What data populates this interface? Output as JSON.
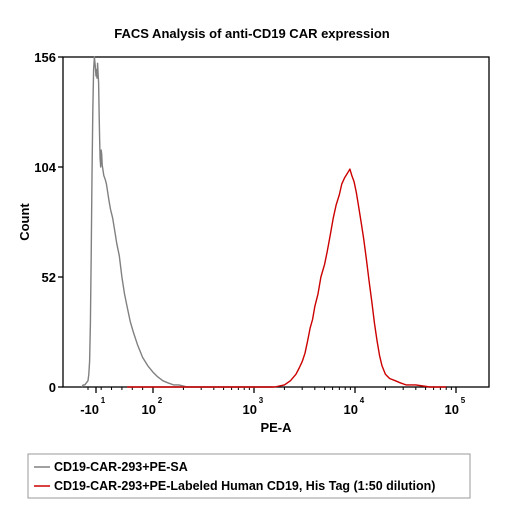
{
  "chart_data": {
    "type": "line",
    "title": "FACS Analysis of anti-CD19 CAR expression",
    "xlabel": "PE-A",
    "ylabel": "Count",
    "xscale": "log",
    "xlim": [
      -30,
      300000
    ],
    "ylim": [
      0,
      156
    ],
    "yticks": [
      0,
      52,
      104,
      156
    ],
    "xticks": [
      {
        "base": "-10",
        "exp": "1",
        "value": -10
      },
      {
        "base": "10",
        "exp": "2",
        "value": 100
      },
      {
        "base": "10",
        "exp": "3",
        "value": 1000
      },
      {
        "base": "10",
        "exp": "4",
        "value": 10000
      },
      {
        "base": "10",
        "exp": "5",
        "value": 100000
      }
    ],
    "grid": false,
    "legend_position": "bottom",
    "series": [
      {
        "name": "CD19-CAR-293+PE-SA",
        "color": "#808080",
        "points": [
          [
            -28,
            0
          ],
          [
            -26,
            1
          ],
          [
            -24,
            1
          ],
          [
            -22,
            2
          ],
          [
            -20,
            3
          ],
          [
            -19,
            6
          ],
          [
            -18,
            12
          ],
          [
            -17,
            30
          ],
          [
            -16,
            62
          ],
          [
            -15,
            100
          ],
          [
            -14,
            130
          ],
          [
            -13,
            150
          ],
          [
            -12,
            156
          ],
          [
            -11,
            152
          ],
          [
            -10,
            147
          ],
          [
            -9,
            150
          ],
          [
            -8,
            146
          ],
          [
            -7,
            153
          ],
          [
            -6,
            148
          ],
          [
            -5,
            144
          ],
          [
            -4,
            130
          ],
          [
            -3,
            118
          ],
          [
            -2,
            108
          ],
          [
            -1,
            104
          ],
          [
            0,
            112
          ],
          [
            1,
            110
          ],
          [
            2,
            105
          ],
          [
            5,
            100
          ],
          [
            8,
            98
          ],
          [
            10,
            96
          ],
          [
            12,
            93
          ],
          [
            15,
            88
          ],
          [
            18,
            84
          ],
          [
            22,
            80
          ],
          [
            26,
            74
          ],
          [
            30,
            68
          ],
          [
            35,
            62
          ],
          [
            40,
            52
          ],
          [
            45,
            44
          ],
          [
            50,
            38
          ],
          [
            56,
            31
          ],
          [
            62,
            26
          ],
          [
            70,
            20
          ],
          [
            80,
            14
          ],
          [
            90,
            10
          ],
          [
            100,
            7
          ],
          [
            110,
            5
          ],
          [
            125,
            3
          ],
          [
            140,
            2
          ],
          [
            160,
            1
          ],
          [
            180,
            1
          ],
          [
            220,
            0
          ],
          [
            400,
            0
          ],
          [
            1000,
            0
          ],
          [
            1500,
            0
          ]
        ]
      },
      {
        "name": "CD19-CAR-293+PE-Labeled Human CD19, His Tag (1:50 dilution)",
        "color": "#cc0000",
        "points": [
          [
            50,
            0
          ],
          [
            300,
            0
          ],
          [
            1000,
            0
          ],
          [
            1600,
            0
          ],
          [
            2000,
            1
          ],
          [
            2300,
            3
          ],
          [
            2600,
            6
          ],
          [
            2800,
            9
          ],
          [
            3000,
            12
          ],
          [
            3200,
            16
          ],
          [
            3400,
            22
          ],
          [
            3600,
            28
          ],
          [
            3800,
            32
          ],
          [
            4000,
            38
          ],
          [
            4300,
            44
          ],
          [
            4600,
            52
          ],
          [
            5000,
            58
          ],
          [
            5300,
            64
          ],
          [
            5700,
            72
          ],
          [
            6100,
            80
          ],
          [
            6500,
            86
          ],
          [
            7000,
            91
          ],
          [
            7400,
            96
          ],
          [
            7900,
            99
          ],
          [
            8400,
            101
          ],
          [
            8900,
            103
          ],
          [
            9300,
            100
          ],
          [
            9800,
            97
          ],
          [
            10300,
            92
          ],
          [
            10800,
            86
          ],
          [
            11500,
            78
          ],
          [
            12200,
            70
          ],
          [
            13000,
            60
          ],
          [
            13800,
            50
          ],
          [
            14700,
            40
          ],
          [
            15600,
            30
          ],
          [
            16500,
            22
          ],
          [
            17500,
            15
          ],
          [
            18500,
            10
          ],
          [
            20000,
            6
          ],
          [
            22000,
            4
          ],
          [
            25000,
            3
          ],
          [
            28000,
            2
          ],
          [
            32000,
            1
          ],
          [
            40000,
            1
          ],
          [
            55000,
            0
          ],
          [
            80000,
            0
          ]
        ]
      }
    ]
  }
}
